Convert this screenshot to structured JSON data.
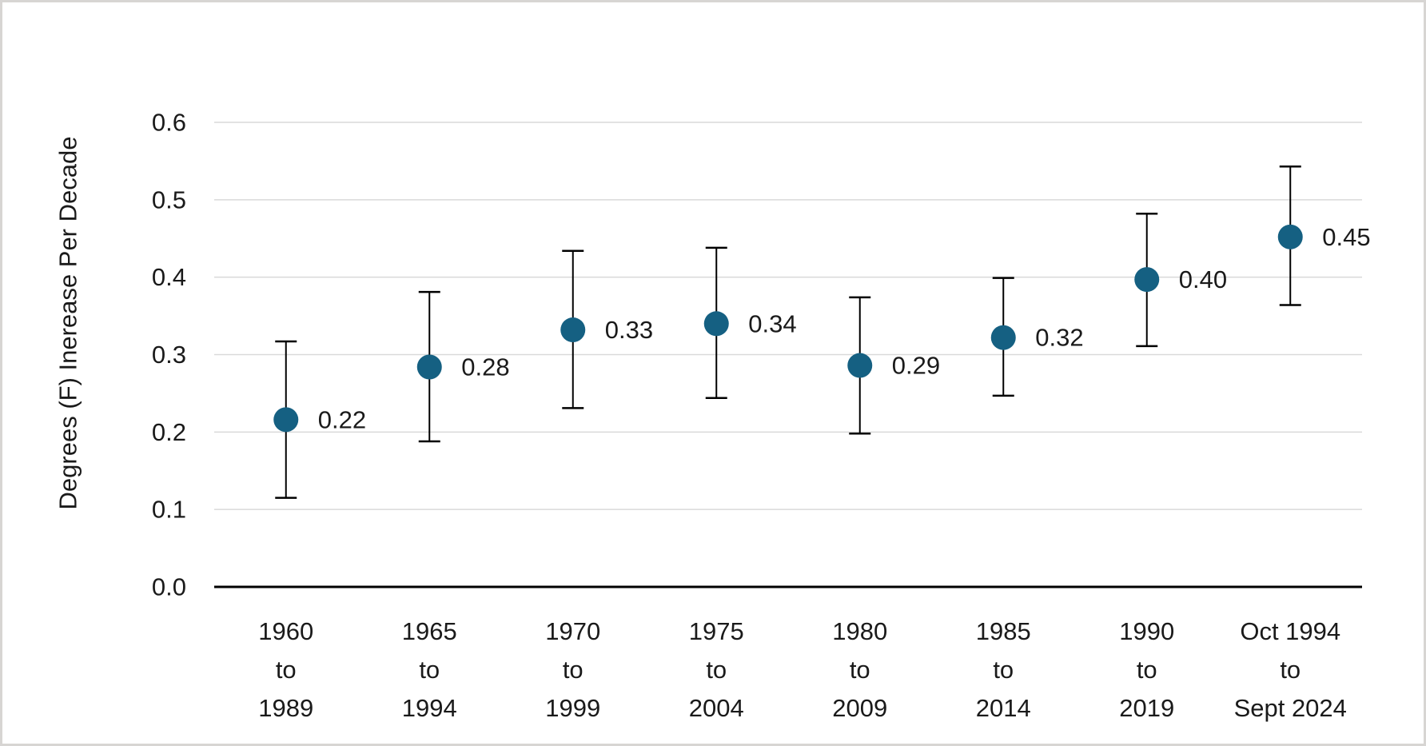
{
  "figure": {
    "background_color": "#ffffff",
    "frame_border_color": "#d7d5d3"
  },
  "chart_data": {
    "type": "scatter",
    "subtype": "dot-with-error-bars",
    "title": "",
    "xlabel": "",
    "ylabel": "Degrees (F) Inerease Per Decade",
    "ylim": [
      0.0,
      0.6
    ],
    "yticks": [
      0.0,
      0.1,
      0.2,
      0.3,
      0.4,
      0.5,
      0.6
    ],
    "ytick_labels": [
      "0.0",
      "0.1",
      "0.2",
      "0.3",
      "0.4",
      "0.5",
      "0.6"
    ],
    "grid": "horizontal",
    "gridline_color": "#d9d9d9",
    "axis_line_color": "#000000",
    "legend_position": "none",
    "marker_color": "#156082",
    "errorbar_color": "#000000",
    "categories": [
      [
        "1960",
        "to",
        "1989"
      ],
      [
        "1965",
        "to",
        "1994"
      ],
      [
        "1970",
        "to",
        "1999"
      ],
      [
        "1975",
        "to",
        "2004"
      ],
      [
        "1980",
        "to",
        "2009"
      ],
      [
        "1985",
        "to",
        "2014"
      ],
      [
        "1990",
        "to",
        "2019"
      ],
      [
        "Oct 1994",
        "to",
        "Sept 2024"
      ]
    ],
    "series": [
      {
        "values": [
          0.216,
          0.284,
          0.332,
          0.34,
          0.286,
          0.322,
          0.397,
          0.452
        ],
        "data_labels": [
          "0.22",
          "0.28",
          "0.33",
          "0.34",
          "0.29",
          "0.32",
          "0.40",
          "0.45"
        ],
        "error_high": [
          0.317,
          0.381,
          0.434,
          0.438,
          0.374,
          0.399,
          0.482,
          0.543
        ],
        "error_low": [
          0.115,
          0.188,
          0.231,
          0.244,
          0.198,
          0.247,
          0.311,
          0.364
        ]
      }
    ]
  }
}
